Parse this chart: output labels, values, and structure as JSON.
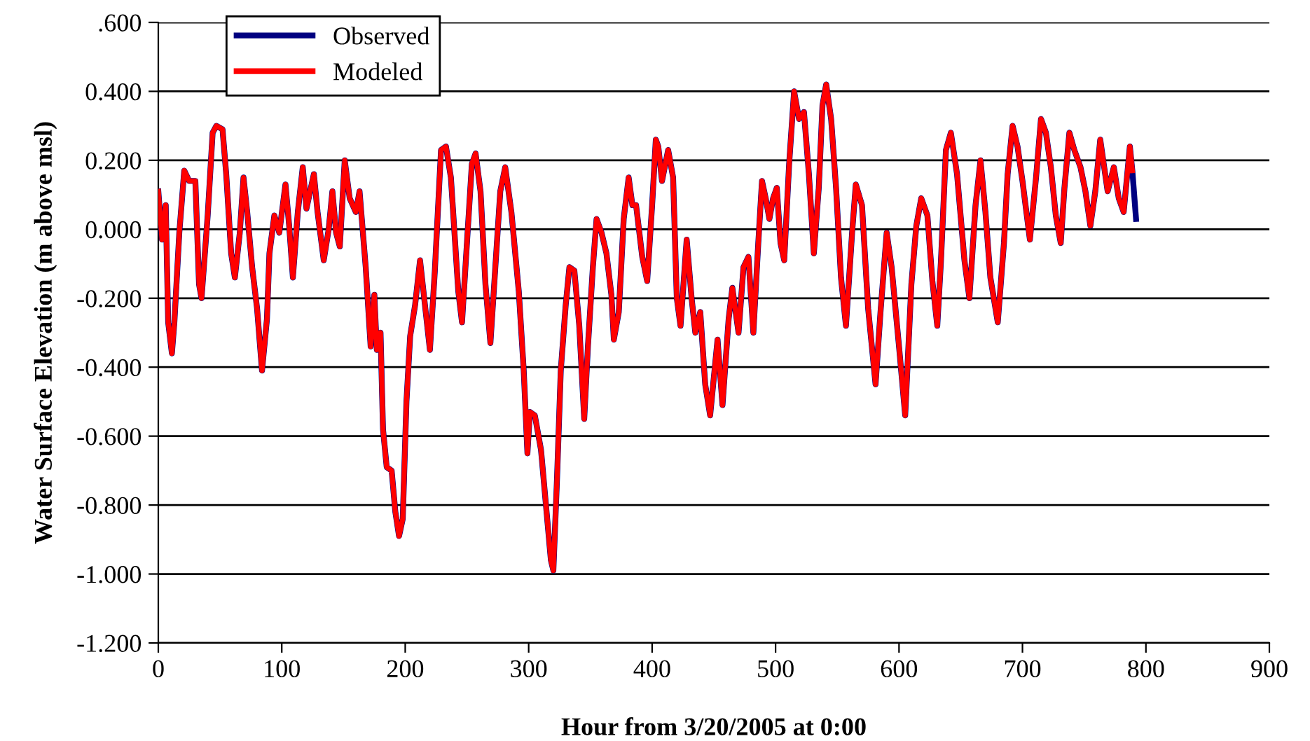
{
  "chart_data": {
    "type": "line",
    "xlabel": "Hour from 3/20/2005 at 0:00",
    "ylabel": "Water Surface Elevation (m above msl)",
    "x": [
      0,
      3,
      6,
      8,
      11,
      13,
      17,
      21,
      25,
      30,
      33,
      35,
      40,
      44,
      47,
      52,
      55,
      59,
      62,
      66,
      69,
      72,
      76,
      80,
      84,
      88,
      90,
      94,
      98,
      103,
      106,
      109,
      113,
      117,
      120,
      126,
      129,
      134,
      138,
      141,
      144,
      147,
      151,
      155,
      160,
      163,
      168,
      172,
      175,
      177,
      180,
      182,
      185,
      189,
      192,
      195,
      198,
      201,
      204,
      208,
      212,
      220,
      224,
      229,
      233,
      237,
      243,
      246,
      250,
      254,
      257,
      261,
      265,
      269,
      273,
      277,
      281,
      286,
      292,
      296,
      299,
      301,
      305,
      310,
      314,
      318,
      320,
      323,
      326,
      330,
      333,
      337,
      341,
      345,
      348,
      352,
      355,
      359,
      363,
      367,
      369,
      373,
      377,
      381,
      384,
      387,
      392,
      396,
      400,
      403,
      405,
      408,
      413,
      417,
      420,
      423,
      428,
      432,
      435,
      439,
      443,
      447,
      453,
      457,
      462,
      465,
      470,
      474,
      478,
      482,
      486,
      489,
      492,
      495,
      498,
      501,
      504,
      507,
      511,
      515,
      519,
      523,
      527,
      531,
      535,
      538,
      541,
      545,
      549,
      553,
      557,
      562,
      565,
      570,
      575,
      581,
      585,
      590,
      594,
      600,
      605,
      610,
      614,
      618,
      623,
      627,
      631,
      634,
      638,
      642,
      647,
      653,
      657,
      662,
      666,
      670,
      674,
      680,
      685,
      688,
      692,
      696,
      700,
      706,
      711,
      715,
      719,
      723,
      727,
      731,
      734,
      738,
      742,
      747,
      751,
      755,
      759,
      763,
      767,
      769,
      774,
      778,
      782,
      787,
      789,
      792
    ],
    "series": [
      {
        "name": "Observed",
        "color": "#000080",
        "values": [
          0.11,
          -0.03,
          0.07,
          -0.27,
          -0.36,
          -0.27,
          -0.01,
          0.17,
          0.14,
          0.14,
          -0.16,
          -0.2,
          0.04,
          0.28,
          0.3,
          0.29,
          0.16,
          -0.07,
          -0.14,
          -0.01,
          0.15,
          0.05,
          -0.11,
          -0.23,
          -0.41,
          -0.26,
          -0.07,
          0.04,
          -0.01,
          0.13,
          0.01,
          -0.14,
          0.05,
          0.18,
          0.06,
          0.16,
          0.05,
          -0.09,
          0,
          0.11,
          -0.01,
          -0.05,
          0.2,
          0.09,
          0.05,
          0.11,
          -0.11,
          -0.34,
          -0.19,
          -0.35,
          -0.3,
          -0.58,
          -0.69,
          -0.7,
          -0.82,
          -0.89,
          -0.84,
          -0.5,
          -0.31,
          -0.22,
          -0.09,
          -0.35,
          -0.12,
          0.23,
          0.24,
          0.15,
          -0.18,
          -0.27,
          -0.04,
          0.19,
          0.22,
          0.11,
          -0.16,
          -0.33,
          -0.11,
          0.11,
          0.18,
          0.05,
          -0.18,
          -0.41,
          -0.65,
          -0.53,
          -0.54,
          -0.64,
          -0.8,
          -0.96,
          -0.99,
          -0.72,
          -0.41,
          -0.22,
          -0.11,
          -0.12,
          -0.28,
          -0.55,
          -0.34,
          -0.11,
          0.03,
          -0.01,
          -0.07,
          -0.19,
          -0.32,
          -0.24,
          0.03,
          0.15,
          0.07,
          0.07,
          -0.08,
          -0.15,
          0.07,
          0.26,
          0.24,
          0.14,
          0.23,
          0.15,
          -0.2,
          -0.28,
          -0.03,
          -0.2,
          -0.3,
          -0.24,
          -0.45,
          -0.54,
          -0.32,
          -0.51,
          -0.26,
          -0.17,
          -0.3,
          -0.11,
          -0.08,
          -0.3,
          -0.04,
          0.14,
          0.09,
          0.03,
          0.09,
          0.12,
          -0.04,
          -0.09,
          0.19,
          0.4,
          0.32,
          0.34,
          0.16,
          -0.07,
          0.12,
          0.36,
          0.42,
          0.32,
          0.12,
          -0.14,
          -0.28,
          -0.01,
          0.13,
          0.07,
          -0.23,
          -0.45,
          -0.24,
          -0.01,
          -0.11,
          -0.34,
          -0.54,
          -0.16,
          0.01,
          0.09,
          0.04,
          -0.15,
          -0.28,
          -0.09,
          0.23,
          0.28,
          0.16,
          -0.09,
          -0.2,
          0.07,
          0.2,
          0.05,
          -0.14,
          -0.27,
          -0.04,
          0.16,
          0.3,
          0.24,
          0.14,
          -0.03,
          0.15,
          0.32,
          0.28,
          0.18,
          0.04,
          -0.04,
          0.12,
          0.28,
          0.23,
          0.18,
          0.11,
          0.01,
          0.11,
          0.26,
          0.16,
          0.11,
          0.18,
          0.09,
          0.05,
          0.24,
          0.17,
          0.03
        ]
      },
      {
        "name": "Modeled",
        "color": "#ff0000",
        "values": [
          0.11,
          -0.03,
          0.07,
          -0.27,
          -0.36,
          -0.27,
          -0.01,
          0.17,
          0.14,
          0.14,
          -0.16,
          -0.2,
          0.04,
          0.28,
          0.3,
          0.29,
          0.16,
          -0.07,
          -0.14,
          -0.01,
          0.15,
          0.05,
          -0.11,
          -0.23,
          -0.41,
          -0.26,
          -0.07,
          0.04,
          -0.01,
          0.13,
          0.01,
          -0.14,
          0.05,
          0.18,
          0.06,
          0.16,
          0.05,
          -0.09,
          0,
          0.11,
          -0.01,
          -0.05,
          0.2,
          0.09,
          0.05,
          0.11,
          -0.11,
          -0.34,
          -0.19,
          -0.35,
          -0.3,
          -0.58,
          -0.69,
          -0.7,
          -0.82,
          -0.89,
          -0.84,
          -0.5,
          -0.31,
          -0.22,
          -0.09,
          -0.35,
          -0.12,
          0.23,
          0.24,
          0.15,
          -0.18,
          -0.27,
          -0.04,
          0.19,
          0.22,
          0.11,
          -0.16,
          -0.33,
          -0.11,
          0.11,
          0.18,
          0.05,
          -0.18,
          -0.41,
          -0.65,
          -0.53,
          -0.54,
          -0.64,
          -0.8,
          -0.96,
          -0.99,
          -0.72,
          -0.41,
          -0.22,
          -0.11,
          -0.12,
          -0.28,
          -0.55,
          -0.34,
          -0.11,
          0.03,
          -0.01,
          -0.07,
          -0.19,
          -0.32,
          -0.24,
          0.03,
          0.15,
          0.07,
          0.07,
          -0.08,
          -0.15,
          0.07,
          0.26,
          0.24,
          0.14,
          0.23,
          0.15,
          -0.2,
          -0.28,
          -0.03,
          -0.2,
          -0.3,
          -0.24,
          -0.45,
          -0.54,
          -0.32,
          -0.51,
          -0.26,
          -0.17,
          -0.3,
          -0.11,
          -0.08,
          -0.3,
          -0.04,
          0.14,
          0.09,
          0.03,
          0.09,
          0.12,
          -0.04,
          -0.09,
          0.19,
          0.4,
          0.32,
          0.34,
          0.16,
          -0.07,
          0.12,
          0.36,
          0.42,
          0.32,
          0.12,
          -0.14,
          -0.28,
          -0.01,
          0.13,
          0.07,
          -0.23,
          -0.45,
          -0.24,
          -0.01,
          -0.11,
          -0.34,
          -0.54,
          -0.16,
          0.01,
          0.09,
          0.04,
          -0.15,
          -0.28,
          -0.09,
          0.23,
          0.28,
          0.16,
          -0.09,
          -0.2,
          0.07,
          0.2,
          0.05,
          -0.14,
          -0.27,
          -0.04,
          0.16,
          0.3,
          0.24,
          0.14,
          -0.03,
          0.15,
          0.32,
          0.28,
          0.18,
          0.04,
          -0.04,
          0.12,
          0.28,
          0.23,
          0.18,
          0.11,
          0.01,
          0.11,
          0.26,
          0.16,
          0.11,
          0.18,
          0.09,
          0.05,
          0.24,
          0.17,
          null
        ]
      }
    ],
    "xlim": [
      0,
      900
    ],
    "xticks": [
      0,
      100,
      200,
      300,
      400,
      500,
      600,
      700,
      800,
      900
    ],
    "ylim": [
      -1.2,
      0.6
    ],
    "yticks": [
      {
        "value": -1.2,
        "label": "-1.200"
      },
      {
        "value": -1.0,
        "label": "-1.000"
      },
      {
        "value": -0.8,
        "label": "-0.800"
      },
      {
        "value": -0.6,
        "label": "-0.600"
      },
      {
        "value": -0.4,
        "label": "-0.400"
      },
      {
        "value": -0.2,
        "label": "-0.200"
      },
      {
        "value": 0,
        "label": "0.000"
      },
      {
        "value": 0.2,
        "label": "0.200"
      },
      {
        "value": 0.4,
        "label": "0.400"
      },
      {
        "value": 0.6,
        "label": ".600"
      }
    ],
    "grid": "y",
    "legend": "top left",
    "marker": "none",
    "line_style": "solid"
  }
}
